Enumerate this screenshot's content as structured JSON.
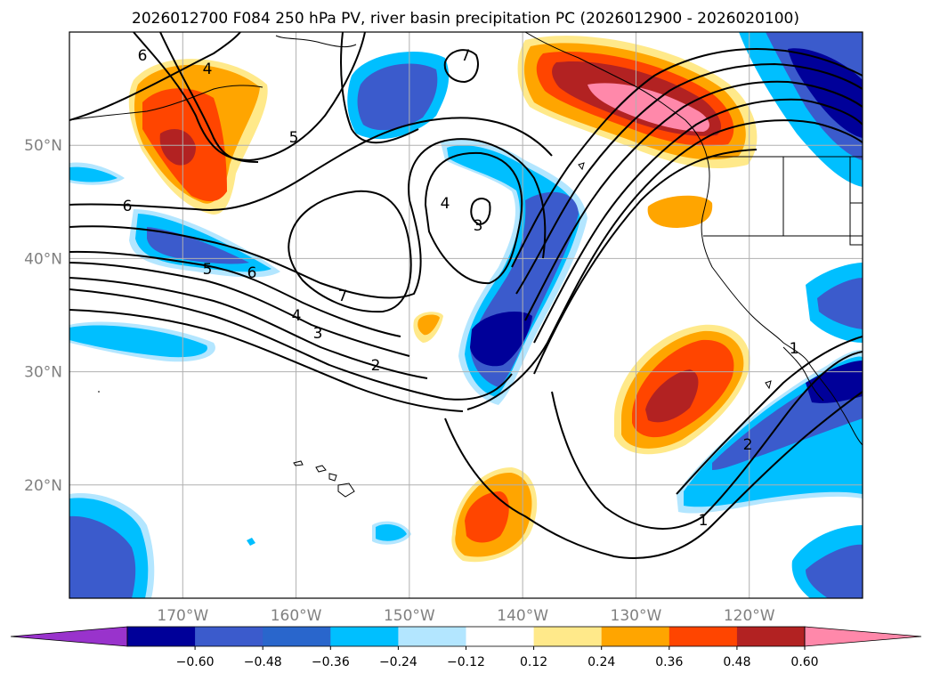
{
  "title": "2026012700 F084 250 hPa PV, river basin precipitation PC (2026012900 - 2026020100)",
  "map": {
    "lon_range": [
      -180,
      -110
    ],
    "lat_range": [
      10,
      60
    ],
    "grid": true,
    "lat_ticks": [
      {
        "lat": 50,
        "label": "50°N"
      },
      {
        "lat": 40,
        "label": "40°N"
      },
      {
        "lat": 30,
        "label": "30°N"
      },
      {
        "lat": 20,
        "label": "20°N"
      }
    ],
    "lon_ticks": [
      {
        "lon": -170,
        "label": "170°W"
      },
      {
        "lon": -160,
        "label": "160°W"
      },
      {
        "lon": -150,
        "label": "150°W"
      },
      {
        "lon": -140,
        "label": "140°W"
      },
      {
        "lon": -130,
        "label": "130°W"
      },
      {
        "lon": -120,
        "label": "120°W"
      }
    ],
    "pv_contour_labels": [
      "6",
      "4",
      "5",
      "7",
      "6",
      "4",
      "3",
      "5",
      "6",
      "7",
      "4",
      "3",
      "2",
      "1",
      "2",
      "1"
    ]
  },
  "colorbar": {
    "extend": "both",
    "colors": [
      "#9933cc",
      "#000099",
      "#3b5bcc",
      "#2966cc",
      "#00bfff",
      "#b3e6ff",
      "#ffffff",
      "#ffe98a",
      "#ffa500",
      "#ff4500",
      "#b22222",
      "#ff88aa"
    ],
    "ticks": [
      "−0.60",
      "−0.48",
      "−0.36",
      "−0.24",
      "−0.12",
      "0.12",
      "0.24",
      "0.36",
      "0.48",
      "0.60"
    ]
  }
}
